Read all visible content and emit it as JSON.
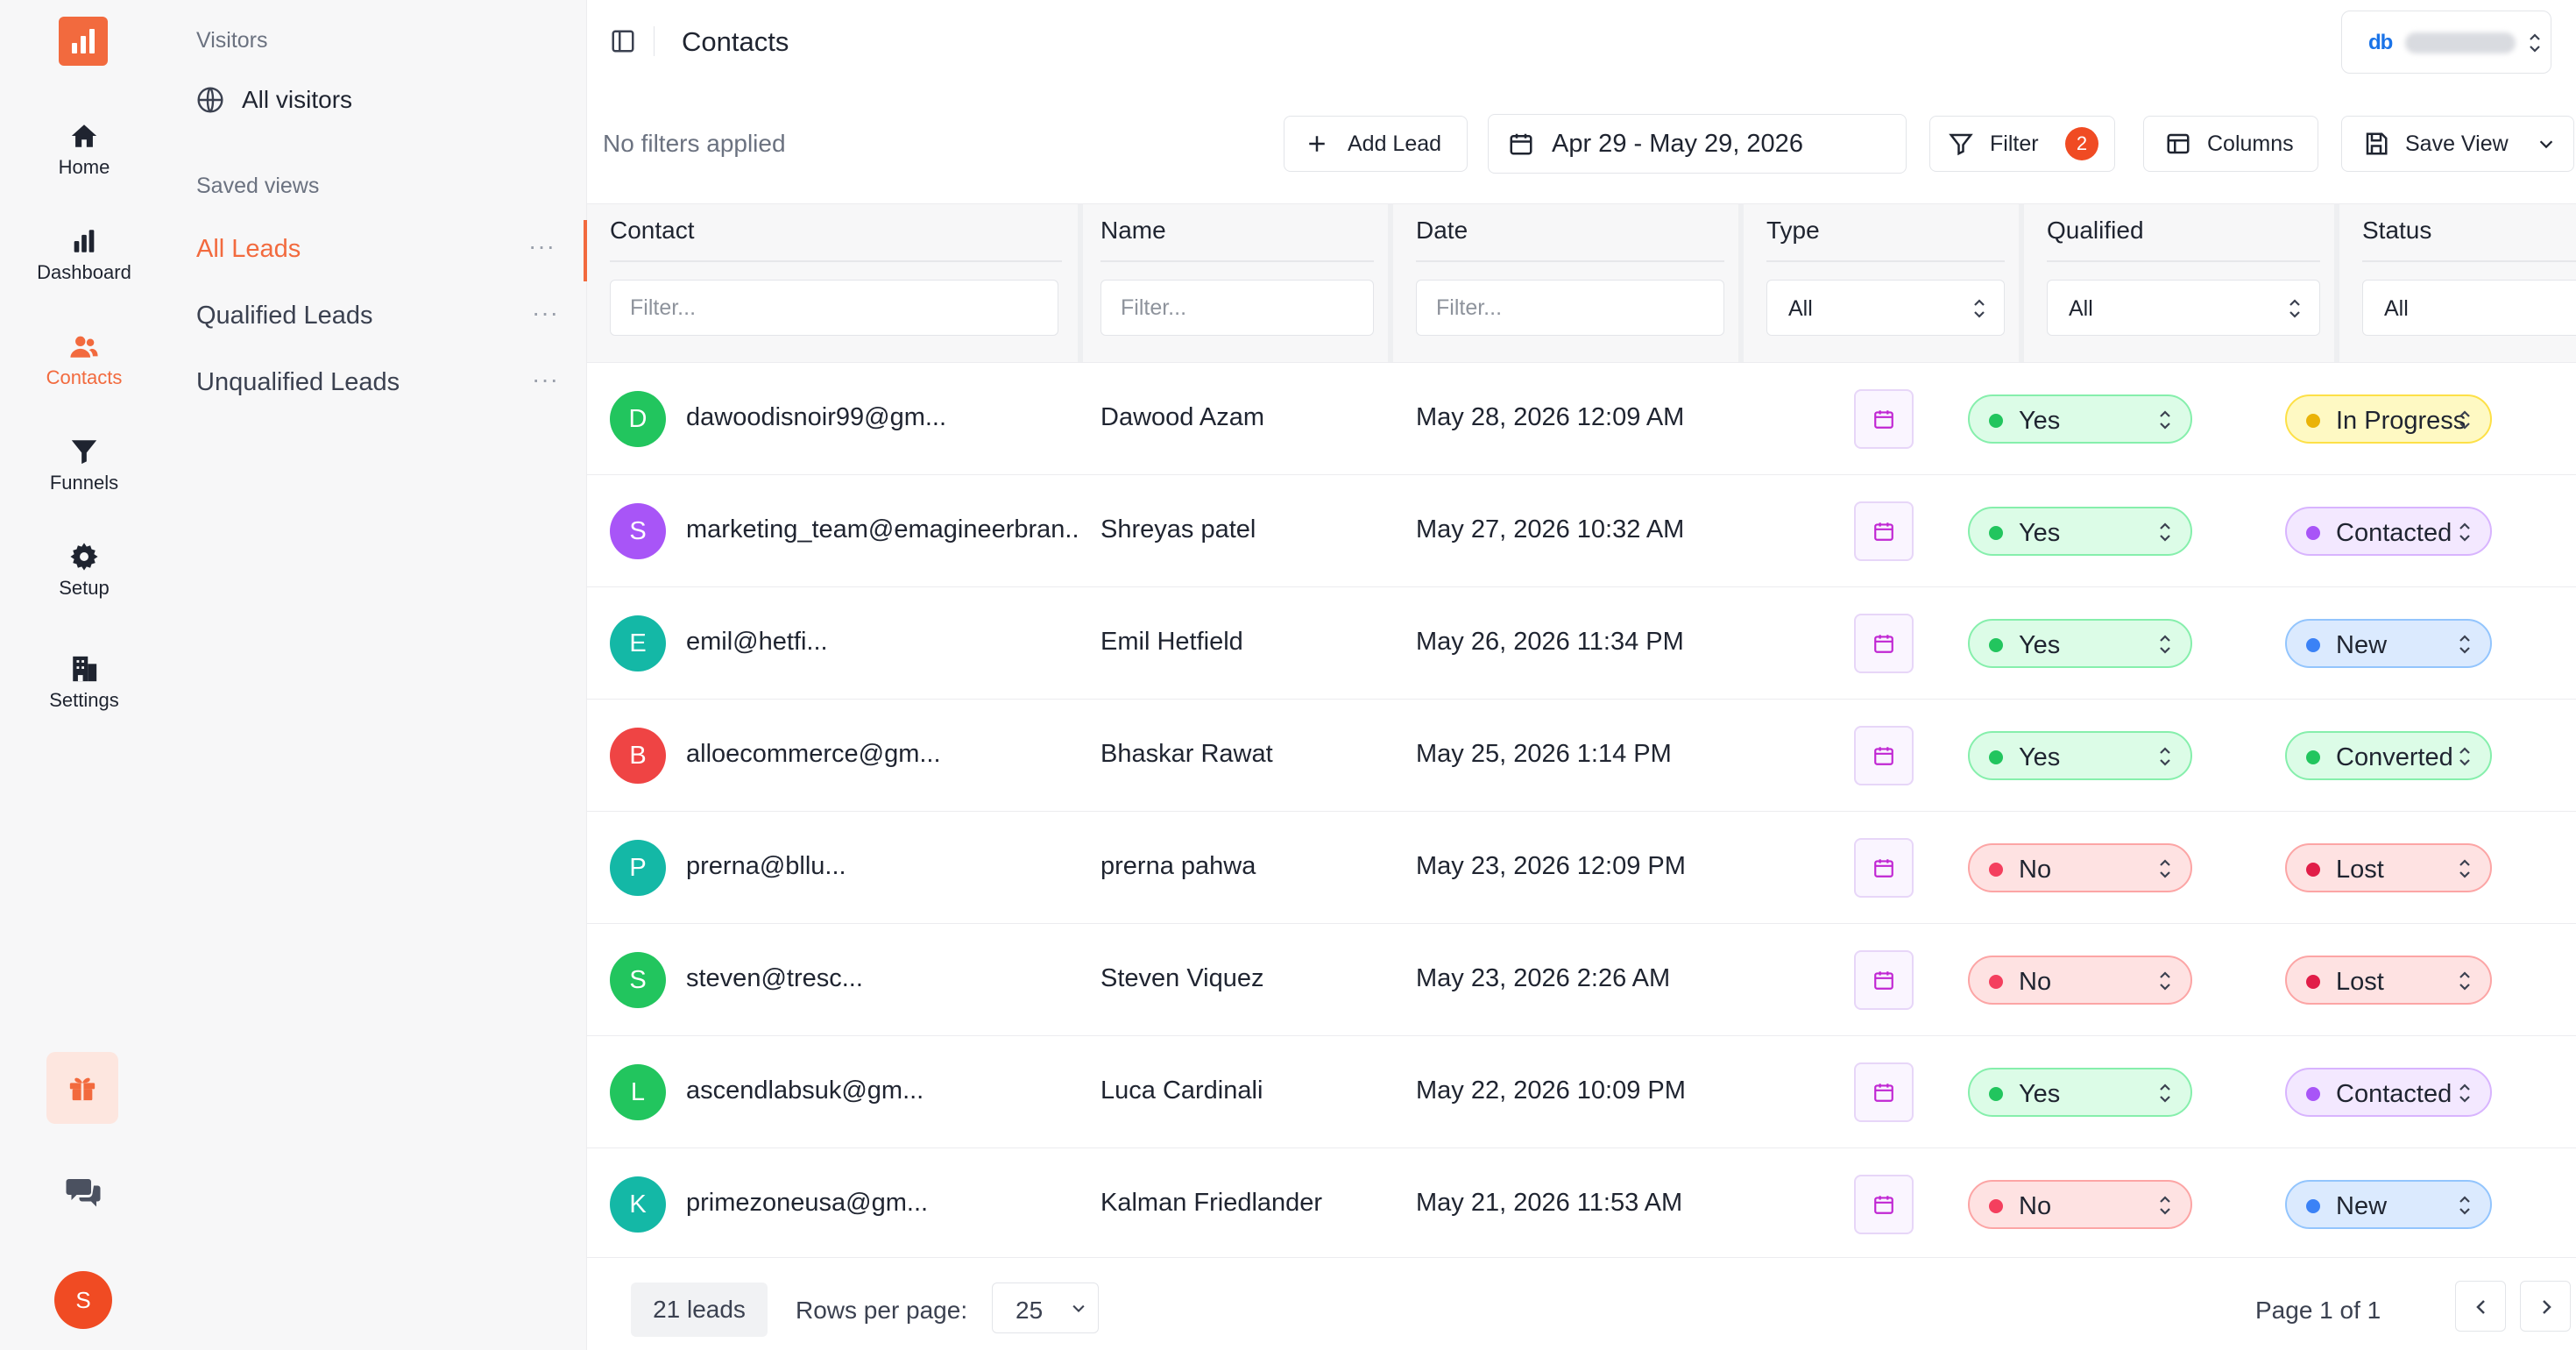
{
  "nav": {
    "items": [
      {
        "label": "Home",
        "icon": "home-icon"
      },
      {
        "label": "Dashboard",
        "icon": "bar-chart-icon"
      },
      {
        "label": "Contacts",
        "icon": "users-icon"
      },
      {
        "label": "Funnels",
        "icon": "funnel-icon"
      },
      {
        "label": "Setup",
        "icon": "gear-icon"
      },
      {
        "label": "Settings",
        "icon": "building-icon"
      }
    ],
    "active": "Contacts",
    "user_initial": "S",
    "accent": "#f26a3e"
  },
  "sidebar": {
    "visitors_heading": "Visitors",
    "all_visitors": "All visitors",
    "saved_views_heading": "Saved views",
    "views": [
      {
        "label": "All Leads",
        "active": true
      },
      {
        "label": "Qualified Leads",
        "active": false
      },
      {
        "label": "Unqualified Leads",
        "active": false
      }
    ],
    "more_label": "···"
  },
  "header": {
    "title": "Contacts",
    "workspace_logo": "db"
  },
  "toolbar": {
    "filters_status": "No filters applied",
    "add_lead": "Add Lead",
    "date_range": "Apr 29 - May 29, 2026",
    "filter": "Filter",
    "filter_count": "2",
    "columns": "Columns",
    "save_view": "Save View"
  },
  "table": {
    "columns": [
      {
        "label": "Contact",
        "filter_placeholder": "Filter..."
      },
      {
        "label": "Name",
        "filter_placeholder": "Filter..."
      },
      {
        "label": "Date",
        "filter_placeholder": "Filter..."
      },
      {
        "label": "Type",
        "filter_value": "All"
      },
      {
        "label": "Qualified",
        "filter_value": "All"
      },
      {
        "label": "Status",
        "filter_value": "All"
      }
    ],
    "rows": [
      {
        "initial": "D",
        "avatar_color": "#22c55e",
        "email": "dawoodisnoir99@gm...",
        "name": "Dawood Azam",
        "date": "May 28, 2026 12:09 AM",
        "qualified": "Yes",
        "status": "In Progress"
      },
      {
        "initial": "S",
        "avatar_color": "#a855f7",
        "email": "marketing_team@emagineerbran...",
        "name": "Shreyas patel",
        "date": "May 27, 2026 10:32 AM",
        "qualified": "Yes",
        "status": "Contacted"
      },
      {
        "initial": "E",
        "avatar_color": "#14b8a6",
        "email": "emil@hetfi...",
        "name": "Emil Hetfield",
        "date": "May 26, 2026 11:34 PM",
        "qualified": "Yes",
        "status": "New"
      },
      {
        "initial": "B",
        "avatar_color": "#ef4444",
        "email": "alloecommerce@gm...",
        "name": "Bhaskar Rawat",
        "date": "May 25, 2026 1:14 PM",
        "qualified": "Yes",
        "status": "Converted"
      },
      {
        "initial": "P",
        "avatar_color": "#14b8a6",
        "email": "prerna@bllu...",
        "name": "prerna pahwa",
        "date": "May 23, 2026 12:09 PM",
        "qualified": "No",
        "status": "Lost"
      },
      {
        "initial": "S",
        "avatar_color": "#22c55e",
        "email": "steven@tresc...",
        "name": "Steven Viquez",
        "date": "May 23, 2026 2:26 AM",
        "qualified": "No",
        "status": "Lost"
      },
      {
        "initial": "L",
        "avatar_color": "#22c55e",
        "email": "ascendlabsuk@gm...",
        "name": "Luca Cardinali",
        "date": "May 22, 2026 10:09 PM",
        "qualified": "Yes",
        "status": "Contacted"
      },
      {
        "initial": "K",
        "avatar_color": "#14b8a6",
        "email": "primezoneusa@gm...",
        "name": "Kalman Friedlander",
        "date": "May 21, 2026 11:53 AM",
        "qualified": "No",
        "status": "New"
      }
    ],
    "qualified_styles": {
      "Yes": {
        "bg": "#dcfce7",
        "border": "#86efac",
        "dot": "#22c55e"
      },
      "No": {
        "bg": "#fee2e2",
        "border": "#fca5a5",
        "dot": "#f43f5e"
      }
    },
    "status_styles": {
      "In Progress": {
        "bg": "#fef9c3",
        "border": "#fde047",
        "dot": "#eab308"
      },
      "Contacted": {
        "bg": "#f3e8ff",
        "border": "#d8b4fe",
        "dot": "#a855f7"
      },
      "New": {
        "bg": "#dbeafe",
        "border": "#93c5fd",
        "dot": "#3b82f6"
      },
      "Converted": {
        "bg": "#dcfce7",
        "border": "#86efac",
        "dot": "#22c55e"
      },
      "Lost": {
        "bg": "#fee2e2",
        "border": "#fca5a5",
        "dot": "#e11d48"
      }
    }
  },
  "footer": {
    "lead_count": "21 leads",
    "rows_per_page_label": "Rows per page:",
    "rows_per_page": "25",
    "page_info": "Page 1 of 1"
  }
}
